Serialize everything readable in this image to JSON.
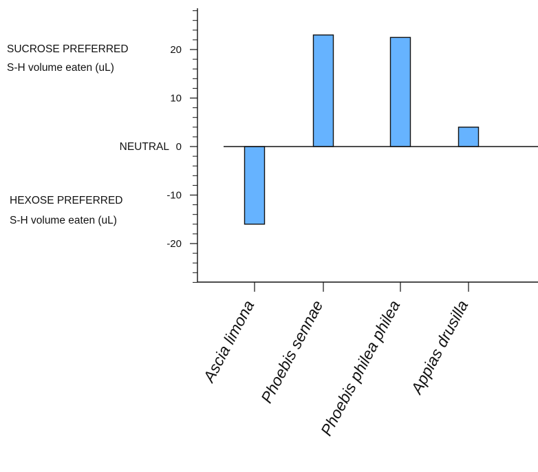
{
  "chart_data": {
    "type": "bar",
    "categories": [
      "Ascia limona",
      "Phoebis sennae",
      "Phoebis philea philea",
      "Appias drusilla"
    ],
    "values": [
      -16,
      23,
      22.5,
      4
    ],
    "ylim": [
      -28,
      28.5
    ],
    "yticks": [
      20,
      10,
      0,
      -10,
      -20
    ],
    "ytick_labels": [
      "20",
      "10",
      "0",
      "-10",
      "-20"
    ],
    "minor_tick_step": 2,
    "grid": false,
    "bar_color": "#66b3ff",
    "bar_edge_color": "#111111",
    "side_labels": {
      "sucrose_title": "SUCROSE PREFERRED",
      "sucrose_sub": "S-H volume eaten (uL)",
      "neutral": "NEUTRAL",
      "hexose_title": "HEXOSE PREFERRED",
      "hexose_sub": "S-H volume eaten (uL)"
    }
  }
}
